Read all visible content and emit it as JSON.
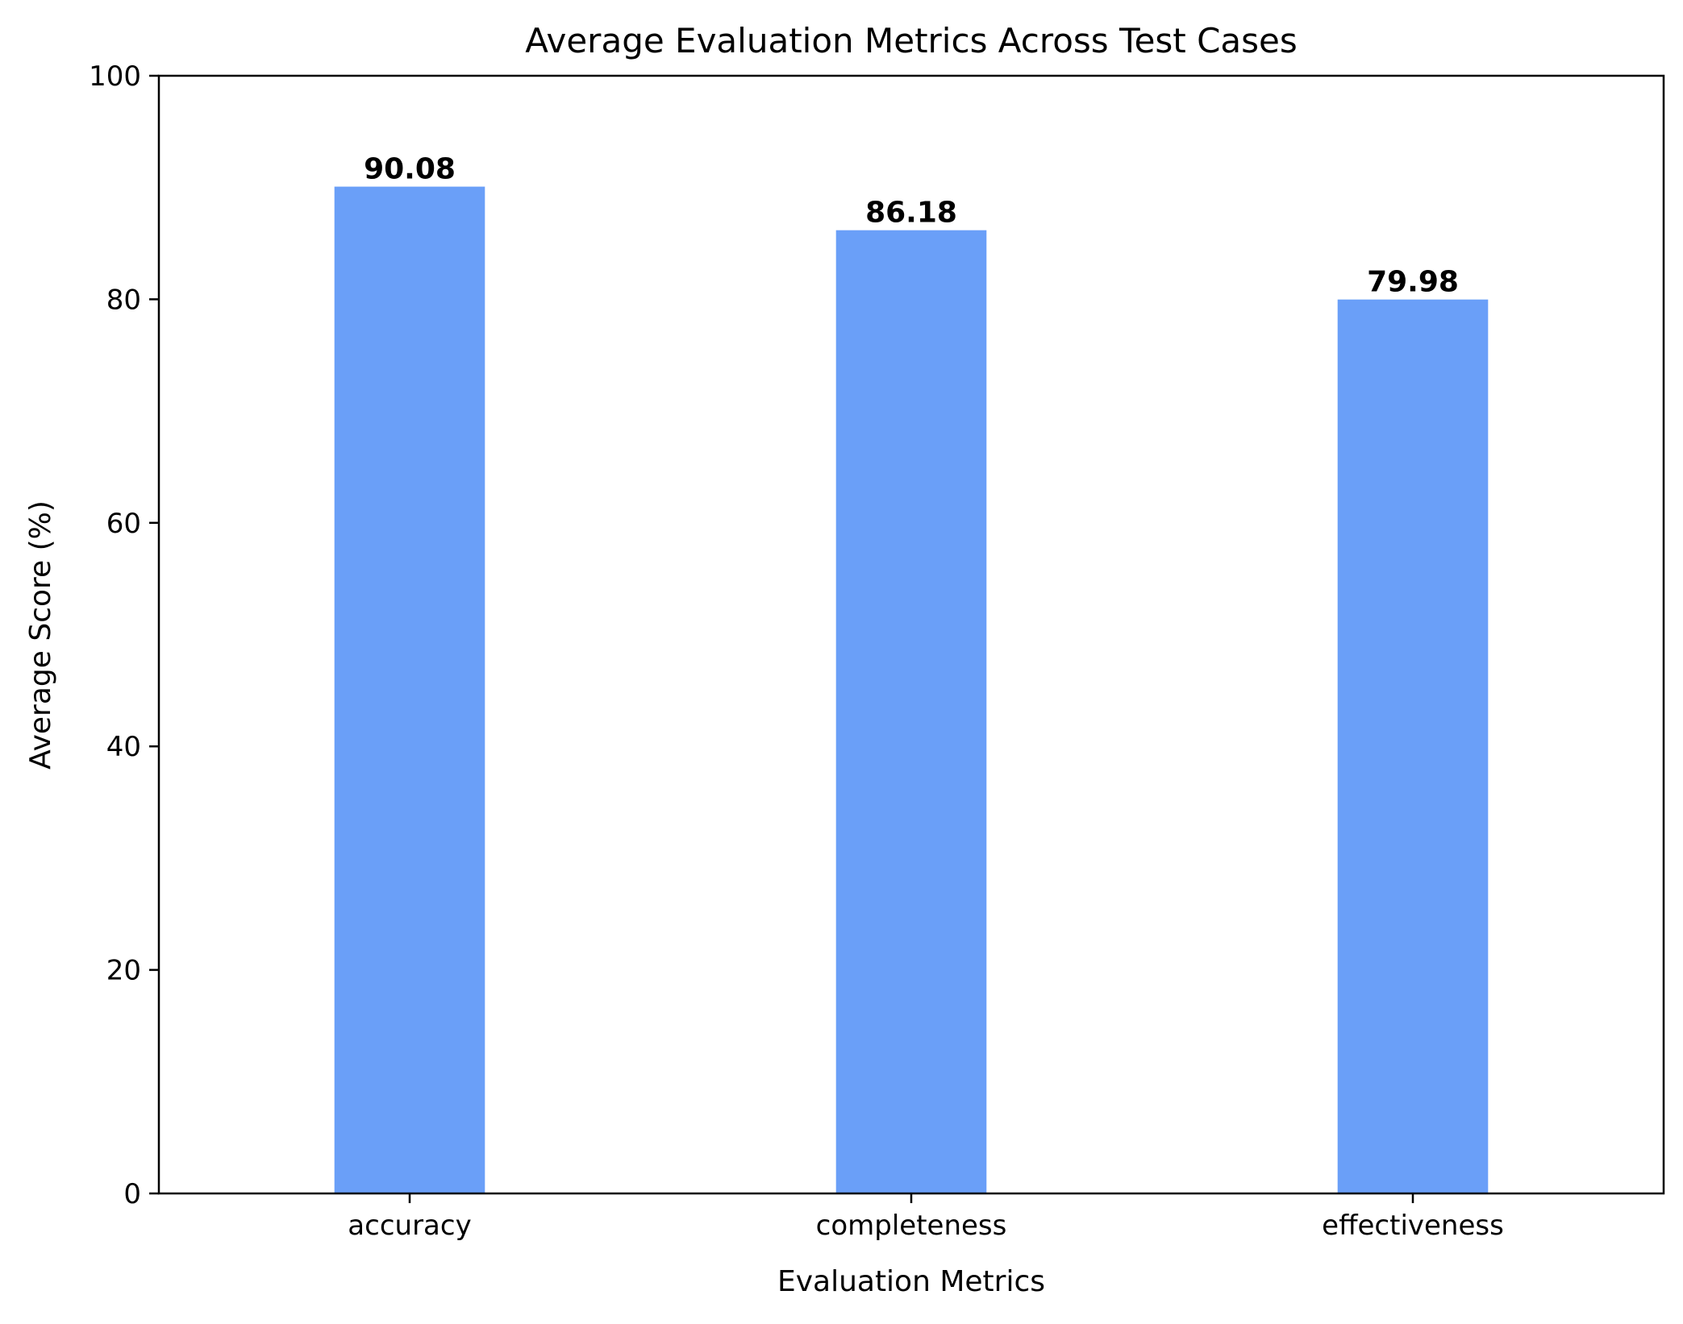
{
  "chart_data": {
    "type": "bar",
    "title": "Average Evaluation Metrics Across Test Cases",
    "xlabel": "Evaluation Metrics",
    "ylabel": "Average Score (%)",
    "categories": [
      "accuracy",
      "completeness",
      "effectiveness"
    ],
    "values": [
      90.08,
      86.18,
      79.98
    ],
    "value_labels": [
      "90.08",
      "86.18",
      "79.98"
    ],
    "ylim": [
      0,
      100
    ],
    "yticks": [
      0,
      20,
      40,
      60,
      80,
      100
    ],
    "ytick_labels": [
      "0",
      "20",
      "40",
      "60",
      "80",
      "100"
    ],
    "bar_color": "#6a9ff8",
    "grid": false,
    "legend": "none"
  }
}
